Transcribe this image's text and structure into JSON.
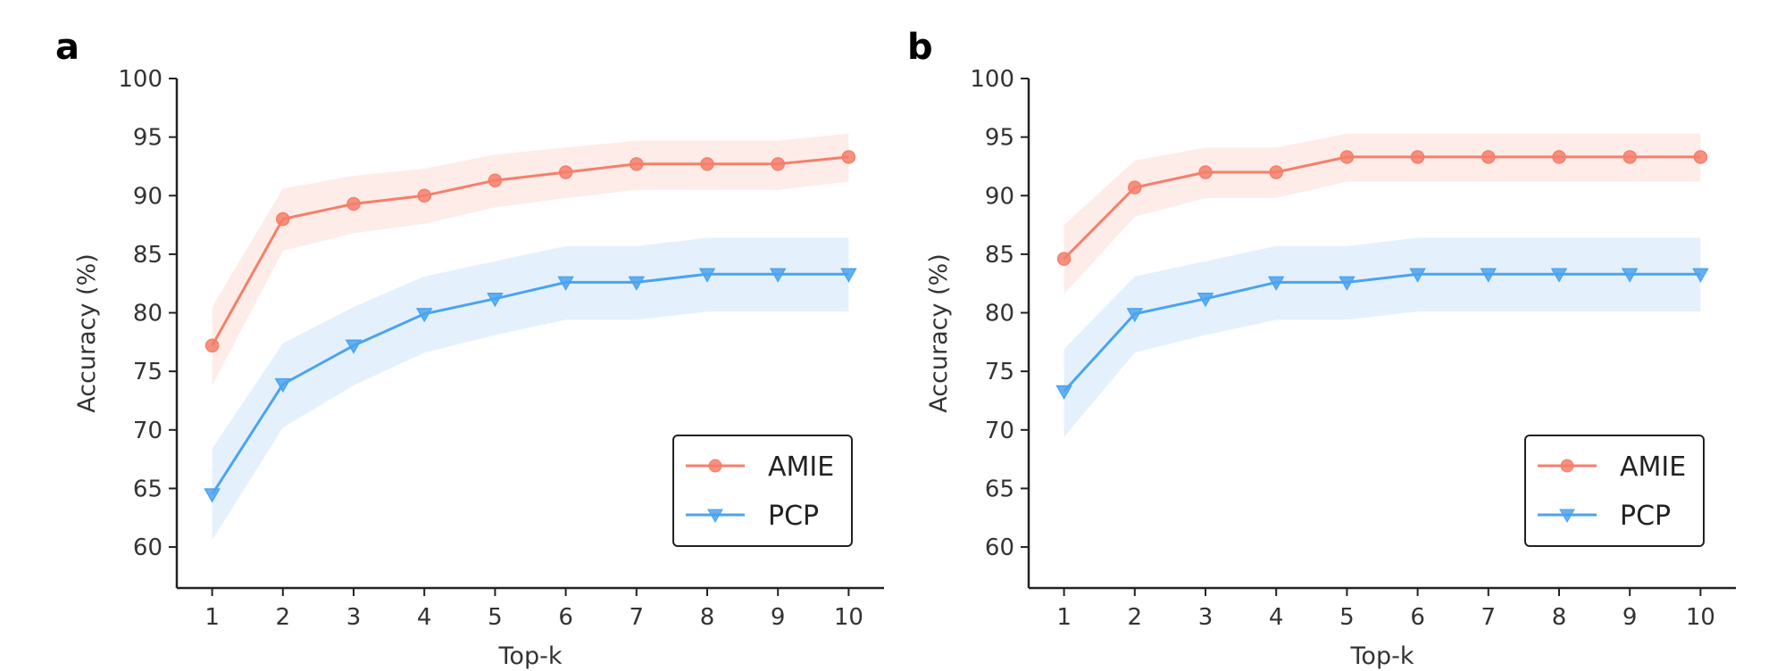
{
  "chart_data": [
    {
      "panel": "a",
      "type": "line",
      "xlabel": "Top-k",
      "ylabel": "Accuracy (%)",
      "x": [
        1,
        2,
        3,
        4,
        5,
        6,
        7,
        8,
        9,
        10
      ],
      "xticks": [
        "1",
        "2",
        "3",
        "4",
        "5",
        "6",
        "7",
        "8",
        "9",
        "10"
      ],
      "yticks": [
        "60",
        "65",
        "70",
        "75",
        "80",
        "85",
        "90",
        "95",
        "100"
      ],
      "ylim": [
        56.5,
        100
      ],
      "xlim": [
        0.5,
        10.5
      ],
      "legend": "lower-right",
      "series": [
        {
          "name": "AMIE",
          "color": "#f57f6a",
          "marker": "circle",
          "values": [
            77.2,
            88.0,
            89.3,
            90.0,
            91.3,
            92.0,
            92.7,
            92.7,
            92.7,
            93.3
          ],
          "lower": [
            73.8,
            85.3,
            86.8,
            87.6,
            89.0,
            89.8,
            90.5,
            90.5,
            90.5,
            91.2
          ],
          "upper": [
            80.5,
            90.6,
            91.7,
            92.3,
            93.5,
            94.1,
            94.7,
            94.7,
            94.7,
            95.3
          ]
        },
        {
          "name": "PCP",
          "color": "#4ba3f0",
          "marker": "triangle-down",
          "values": [
            64.5,
            73.9,
            77.2,
            79.9,
            81.2,
            82.6,
            82.6,
            83.3,
            83.3,
            83.3
          ],
          "lower": [
            60.6,
            70.2,
            73.8,
            76.6,
            78.1,
            79.4,
            79.4,
            80.1,
            80.1,
            80.1
          ],
          "upper": [
            68.4,
            77.4,
            80.5,
            83.1,
            84.4,
            85.7,
            85.7,
            86.4,
            86.4,
            86.4
          ]
        }
      ]
    },
    {
      "panel": "b",
      "type": "line",
      "xlabel": "Top-k",
      "ylabel": "Accuracy (%)",
      "x": [
        1,
        2,
        3,
        4,
        5,
        6,
        7,
        8,
        9,
        10
      ],
      "xticks": [
        "1",
        "2",
        "3",
        "4",
        "5",
        "6",
        "7",
        "8",
        "9",
        "10"
      ],
      "yticks": [
        "60",
        "65",
        "70",
        "75",
        "80",
        "85",
        "90",
        "95",
        "100"
      ],
      "ylim": [
        56.5,
        100
      ],
      "xlim": [
        0.5,
        10.5
      ],
      "legend": "lower-right",
      "series": [
        {
          "name": "AMIE",
          "color": "#f57f6a",
          "marker": "circle",
          "values": [
            84.6,
            90.7,
            92.0,
            92.0,
            93.3,
            93.3,
            93.3,
            93.3,
            93.3,
            93.3
          ],
          "lower": [
            81.6,
            88.2,
            89.8,
            89.8,
            91.2,
            91.2,
            91.2,
            91.2,
            91.2,
            91.2
          ],
          "upper": [
            87.5,
            93.0,
            94.1,
            94.1,
            95.3,
            95.3,
            95.3,
            95.3,
            95.3,
            95.3
          ]
        },
        {
          "name": "PCP",
          "color": "#4ba3f0",
          "marker": "triangle-down",
          "values": [
            73.3,
            79.9,
            81.2,
            82.6,
            82.6,
            83.3,
            83.3,
            83.3,
            83.3,
            83.3
          ],
          "lower": [
            69.4,
            76.6,
            78.1,
            79.4,
            79.4,
            80.1,
            80.1,
            80.1,
            80.1,
            80.1
          ],
          "upper": [
            76.9,
            83.1,
            84.4,
            85.7,
            85.7,
            86.4,
            86.4,
            86.4,
            86.4,
            86.4
          ]
        }
      ]
    }
  ]
}
